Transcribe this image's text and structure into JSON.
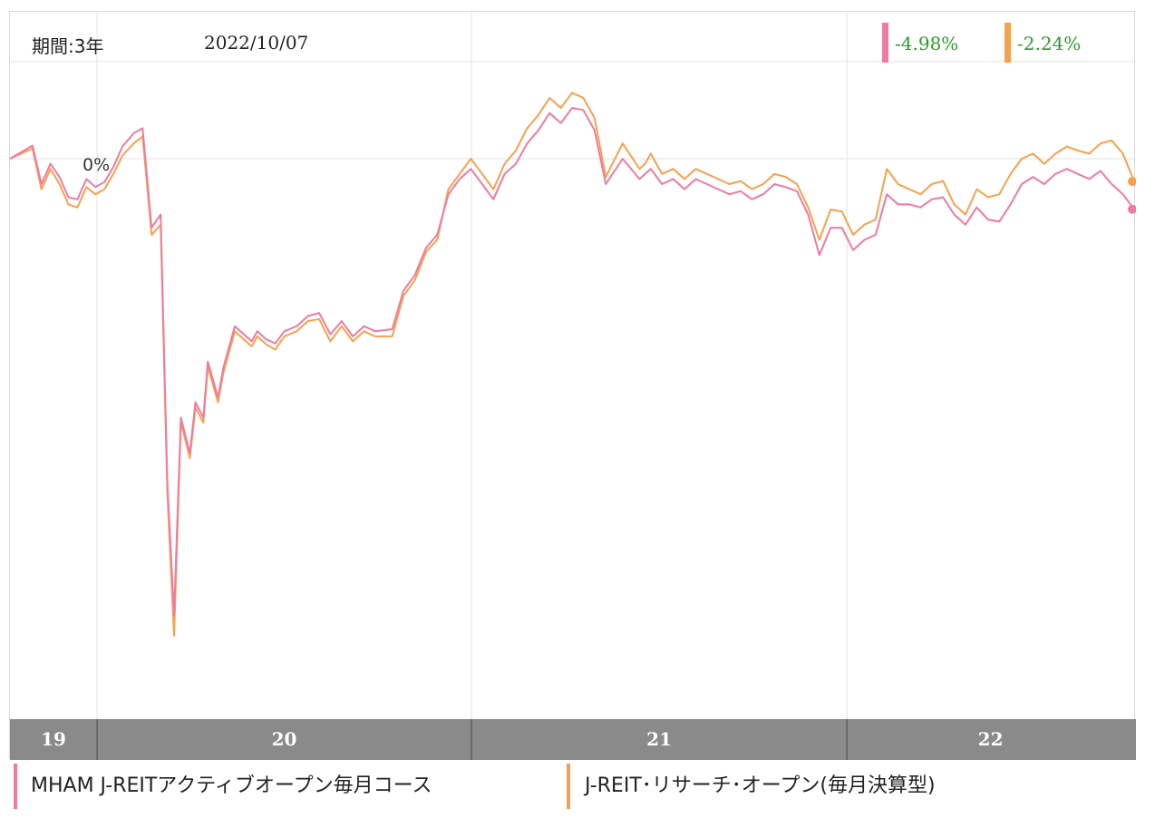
{
  "header": {
    "period_label": "期間:3年",
    "date_label": "2022/10/07"
  },
  "returns": [
    {
      "value": "-4.98%",
      "color": "#f07ba0"
    },
    {
      "value": "-2.24%",
      "color": "#f7a14e"
    }
  ],
  "legend": [
    {
      "label": "MHAM J-REITアクティブオープン毎月コース",
      "color": "#f07ba0"
    },
    {
      "label": "J-REIT･リサーチ･オープン(毎月決算型)",
      "color": "#f7a14e"
    }
  ],
  "colors": {
    "series_pink": "#f07ba0",
    "series_orange": "#f7a14e",
    "gain_text": "#2a9c2a",
    "year_band": "#8a8a8a",
    "grid": "#e3e3e3"
  },
  "chart_data": {
    "type": "line",
    "zero_label": "0%",
    "x_tick_labels": [
      "19",
      "20",
      "21",
      "22"
    ],
    "x_range": [
      0,
      1
    ],
    "ylim": [
      -62,
      8
    ],
    "grid": true,
    "series": [
      {
        "name": "MHAM J-REITアクティブオープン毎月コース",
        "color": "#f07ba0",
        "x": [
          0,
          0.02,
          0.028,
          0.036,
          0.044,
          0.052,
          0.06,
          0.068,
          0.076,
          0.084,
          0.092,
          0.1,
          0.11,
          0.118,
          0.126,
          0.134,
          0.14,
          0.146,
          0.152,
          0.16,
          0.165,
          0.172,
          0.176,
          0.185,
          0.19,
          0.2,
          0.205,
          0.215,
          0.22,
          0.228,
          0.236,
          0.244,
          0.255,
          0.265,
          0.275,
          0.285,
          0.295,
          0.305,
          0.315,
          0.325,
          0.34,
          0.35,
          0.36,
          0.37,
          0.38,
          0.39,
          0.4,
          0.41,
          0.42,
          0.43,
          0.44,
          0.45,
          0.46,
          0.47,
          0.48,
          0.49,
          0.5,
          0.51,
          0.52,
          0.53,
          0.545,
          0.56,
          0.565,
          0.57,
          0.58,
          0.59,
          0.6,
          0.61,
          0.62,
          0.63,
          0.64,
          0.65,
          0.66,
          0.67,
          0.68,
          0.69,
          0.7,
          0.71,
          0.72,
          0.73,
          0.74,
          0.75,
          0.76,
          0.77,
          0.78,
          0.79,
          0.8,
          0.81,
          0.82,
          0.83,
          0.84,
          0.85,
          0.86,
          0.87,
          0.88,
          0.89,
          0.9,
          0.91,
          0.92,
          0.93,
          0.94,
          0.95,
          0.96,
          0.97,
          0.98,
          0.99,
          1.0
        ],
        "y": [
          0,
          1.3,
          -2.5,
          -0.5,
          -1.8,
          -3.8,
          -4.0,
          -2.0,
          -2.8,
          -2.3,
          -0.8,
          1.2,
          2.5,
          3.0,
          -6.8,
          -5.5,
          -32.0,
          -45.0,
          -25.5,
          -29.0,
          -24.0,
          -25.5,
          -20.0,
          -23.5,
          -20.5,
          -16.5,
          -17.0,
          -18.0,
          -17.0,
          -17.8,
          -18.2,
          -17.0,
          -16.5,
          -15.5,
          -15.2,
          -17.3,
          -16.0,
          -17.5,
          -16.5,
          -17.0,
          -16.8,
          -13.0,
          -11.5,
          -8.8,
          -7.5,
          -3.5,
          -2.0,
          -1.0,
          -2.5,
          -4.0,
          -1.5,
          -0.5,
          1.5,
          2.8,
          4.5,
          3.5,
          5.0,
          4.8,
          2.8,
          -2.5,
          0.0,
          -2.0,
          -1.5,
          -1.0,
          -2.5,
          -2.0,
          -3.0,
          -2.0,
          -2.5,
          -3.0,
          -3.5,
          -3.2,
          -4.0,
          -3.5,
          -2.5,
          -2.8,
          -3.2,
          -5.5,
          -9.5,
          -6.8,
          -6.8,
          -9.0,
          -8.0,
          -7.5,
          -3.5,
          -4.5,
          -4.5,
          -4.8,
          -4.0,
          -3.8,
          -5.5,
          -6.5,
          -4.8,
          -6.0,
          -6.2,
          -4.5,
          -2.5,
          -1.8,
          -2.5,
          -1.5,
          -1.0,
          -1.5,
          -2.0,
          -1.2,
          -2.5,
          -3.5,
          -4.98
        ]
      },
      {
        "name": "J-REIT･リサーチ･オープン(毎月決算型)",
        "color": "#f7a14e",
        "x": [
          0,
          0.02,
          0.028,
          0.036,
          0.044,
          0.052,
          0.06,
          0.068,
          0.076,
          0.084,
          0.092,
          0.1,
          0.11,
          0.118,
          0.126,
          0.134,
          0.14,
          0.146,
          0.152,
          0.16,
          0.165,
          0.172,
          0.176,
          0.185,
          0.19,
          0.2,
          0.205,
          0.215,
          0.22,
          0.228,
          0.236,
          0.244,
          0.255,
          0.265,
          0.275,
          0.285,
          0.295,
          0.305,
          0.315,
          0.325,
          0.34,
          0.35,
          0.36,
          0.37,
          0.38,
          0.39,
          0.4,
          0.41,
          0.42,
          0.43,
          0.44,
          0.45,
          0.46,
          0.47,
          0.48,
          0.49,
          0.5,
          0.51,
          0.52,
          0.53,
          0.545,
          0.56,
          0.565,
          0.57,
          0.58,
          0.59,
          0.6,
          0.61,
          0.62,
          0.63,
          0.64,
          0.65,
          0.66,
          0.67,
          0.68,
          0.69,
          0.7,
          0.71,
          0.72,
          0.73,
          0.74,
          0.75,
          0.76,
          0.77,
          0.78,
          0.79,
          0.8,
          0.81,
          0.82,
          0.83,
          0.84,
          0.85,
          0.86,
          0.87,
          0.88,
          0.89,
          0.9,
          0.91,
          0.92,
          0.93,
          0.94,
          0.95,
          0.96,
          0.97,
          0.98,
          0.99,
          1.0
        ],
        "y": [
          0,
          1.0,
          -3.0,
          -1.0,
          -2.5,
          -4.5,
          -4.8,
          -2.8,
          -3.5,
          -3.0,
          -1.5,
          0.3,
          1.5,
          2.2,
          -7.5,
          -6.5,
          -33.0,
          -47.0,
          -26.0,
          -29.5,
          -24.5,
          -26.0,
          -20.5,
          -24.0,
          -21.0,
          -17.0,
          -17.5,
          -18.5,
          -17.5,
          -18.3,
          -18.8,
          -17.5,
          -17.0,
          -16.0,
          -15.8,
          -18.0,
          -16.5,
          -18.0,
          -17.0,
          -17.5,
          -17.5,
          -13.5,
          -12.0,
          -9.2,
          -8.0,
          -3.0,
          -1.5,
          0.0,
          -1.5,
          -3.0,
          -0.5,
          0.8,
          3.0,
          4.3,
          6.0,
          5.0,
          6.5,
          6.0,
          4.0,
          -1.8,
          1.5,
          -1.0,
          -0.5,
          0.5,
          -1.5,
          -1.0,
          -2.0,
          -1.0,
          -1.5,
          -2.0,
          -2.5,
          -2.2,
          -3.0,
          -2.5,
          -1.5,
          -1.8,
          -2.5,
          -4.8,
          -8.0,
          -5.0,
          -5.2,
          -7.5,
          -6.5,
          -6.0,
          -1.0,
          -2.5,
          -3.0,
          -3.5,
          -2.5,
          -2.2,
          -4.5,
          -5.5,
          -3.0,
          -3.8,
          -3.5,
          -1.5,
          0.0,
          0.5,
          -0.5,
          0.5,
          1.2,
          0.8,
          0.5,
          1.5,
          1.8,
          0.5,
          -2.24
        ]
      }
    ]
  }
}
